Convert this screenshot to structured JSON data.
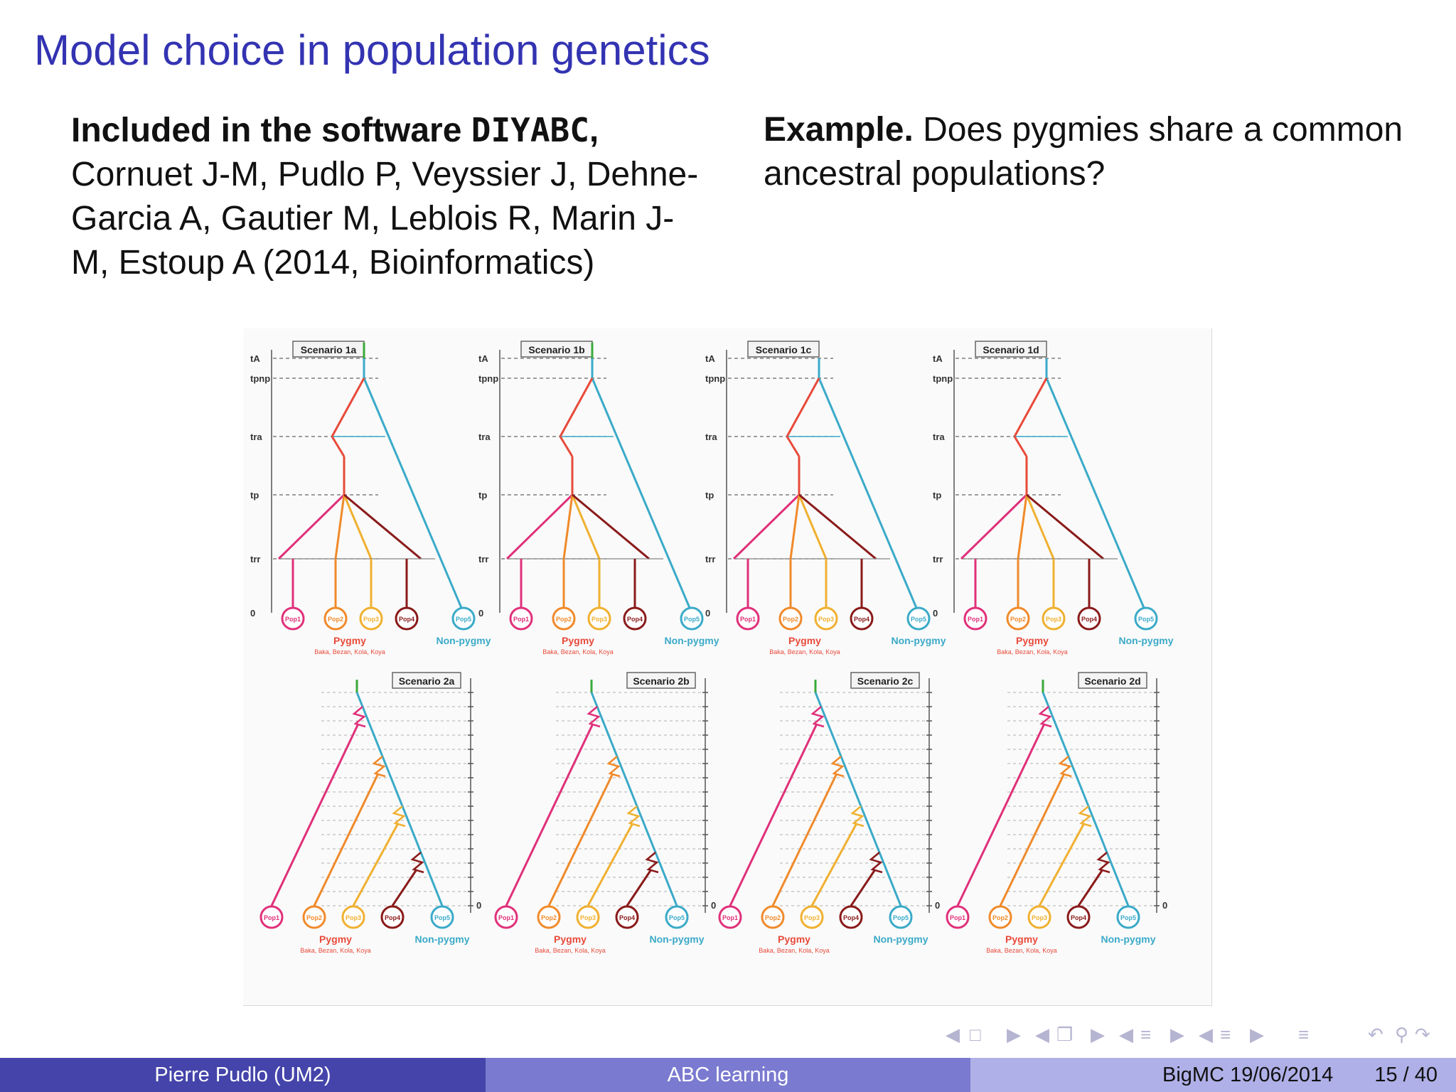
{
  "slide": {
    "title": "Model choice in population genetics"
  },
  "left_column": {
    "lead_bold": "Included in the software",
    "software": "DIYABC",
    "comma": ",",
    "citation": "Cornuet J-M, Pudlo P, Veyssier J, Dehne-Garcia A, Gautier M, Leblois R, Marin J-M, Estoup A (2014, Bioinformatics)"
  },
  "right_column": {
    "lead_bold": "Example.",
    "text": "Does pygmies share a common ancestral populations?"
  },
  "figure": {
    "scenarios_top": [
      "Scenario 1a",
      "Scenario 1b",
      "Scenario 1c",
      "Scenario 1d"
    ],
    "scenarios_bottom": [
      "Scenario 2a",
      "Scenario 2b",
      "Scenario 2c",
      "Scenario 2d"
    ],
    "group_pygmy": "Pygmy",
    "group_pygmy_sub": "Baka, Bezan, Kola, Koya",
    "group_nonpygmy": "Non-pygmy",
    "pop_labels": [
      "Pop1",
      "Pop2",
      "Pop3",
      "Pop4",
      "Pop5"
    ],
    "time_labels_top": [
      "tA",
      "tpnp",
      "tra",
      "tp",
      "trr",
      "0"
    ],
    "colors": {
      "pop1": "#e0307a",
      "pop2": "#f08a2a",
      "pop3": "#f0b030",
      "pop4": "#8a1a1a",
      "pop5": "#3aaac8",
      "ancestral": "#3aaa3a",
      "pygmy_ancestral": "#e84a3a"
    }
  },
  "navigation": {
    "icons": [
      "nav-left-icon",
      "frame-icon",
      "nav-right-icon",
      "nav-left-icon",
      "subsection-icon",
      "nav-right-icon",
      "nav-left-icon",
      "section-icon",
      "nav-right-icon",
      "nav-left-icon",
      "doc-icon",
      "nav-right-icon",
      "menu-icon",
      "undo-icon",
      "search-icon"
    ]
  },
  "footer": {
    "author": "Pierre Pudlo  (UM2)",
    "talk": "ABC learning",
    "event": "BigMC 19/06/2014",
    "page": "15 / 40"
  }
}
